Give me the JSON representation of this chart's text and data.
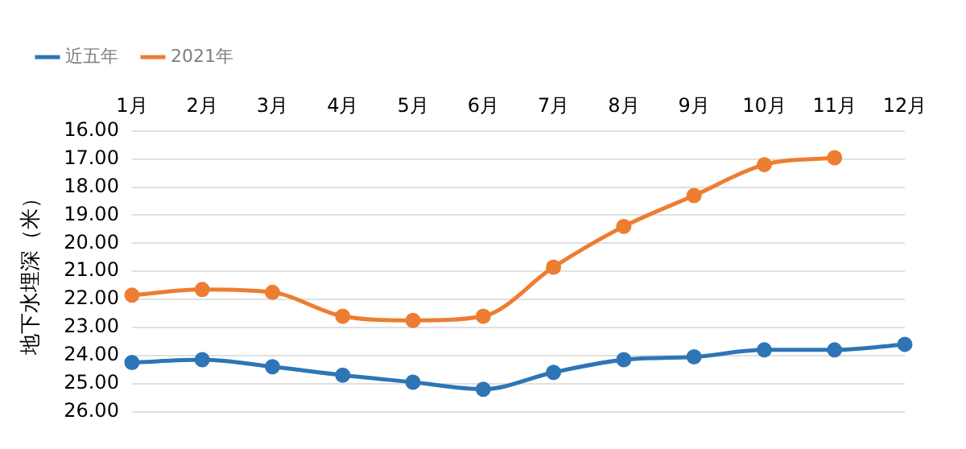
{
  "chart_data": {
    "type": "line",
    "ylabel": "地下水埋深（米）",
    "categories": [
      "1月",
      "2月",
      "3月",
      "4月",
      "5月",
      "6月",
      "7月",
      "8月",
      "9月",
      "10月",
      "11月",
      "12月"
    ],
    "series": [
      {
        "name": "近五年",
        "color": "#2e75b6",
        "values": [
          24.25,
          24.15,
          24.4,
          24.7,
          24.95,
          25.2,
          24.6,
          24.15,
          24.05,
          23.8,
          23.8,
          23.6
        ]
      },
      {
        "name": "2021年",
        "color": "#ed7d31",
        "values": [
          21.85,
          21.65,
          21.75,
          22.6,
          22.75,
          22.6,
          20.85,
          19.4,
          18.3,
          17.2,
          16.95,
          null
        ]
      }
    ],
    "ylim": [
      26,
      16
    ],
    "yticks": [
      {
        "value": 16,
        "label": "16.00"
      },
      {
        "value": 17,
        "label": "17.00"
      },
      {
        "value": 18,
        "label": "18.00"
      },
      {
        "value": 19,
        "label": "19.00"
      },
      {
        "value": 20,
        "label": "20.00"
      },
      {
        "value": 21,
        "label": "21.00"
      },
      {
        "value": 22,
        "label": "22.00"
      },
      {
        "value": 23,
        "label": "23.00"
      },
      {
        "value": 24,
        "label": "24.00"
      },
      {
        "value": 25,
        "label": "25.00"
      },
      {
        "value": 26,
        "label": "26.00"
      }
    ],
    "grid": "y",
    "legend": "top left",
    "marker": "circle",
    "line_style": "solid"
  }
}
